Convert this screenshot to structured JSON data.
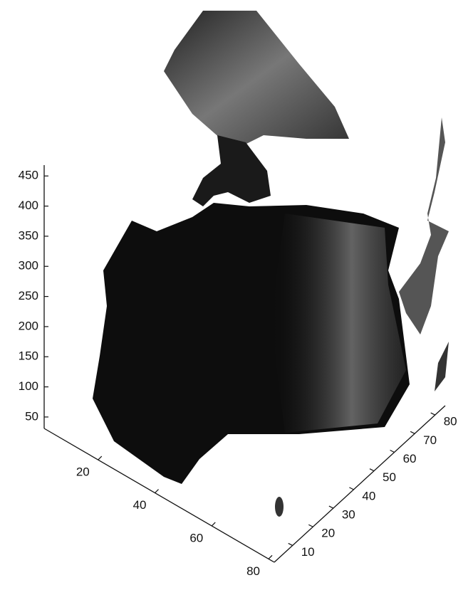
{
  "chart_data": {
    "type": "surface3d",
    "xlim": [
      1,
      82
    ],
    "xticks": [
      20,
      40,
      60,
      80
    ],
    "ylim": [
      1,
      85
    ],
    "yticks": [
      10,
      20,
      30,
      40,
      50,
      60,
      70,
      80
    ],
    "zlim": [
      31,
      468
    ],
    "zticks": [
      50,
      100,
      150,
      200,
      250,
      300,
      350,
      400,
      450
    ]
  }
}
